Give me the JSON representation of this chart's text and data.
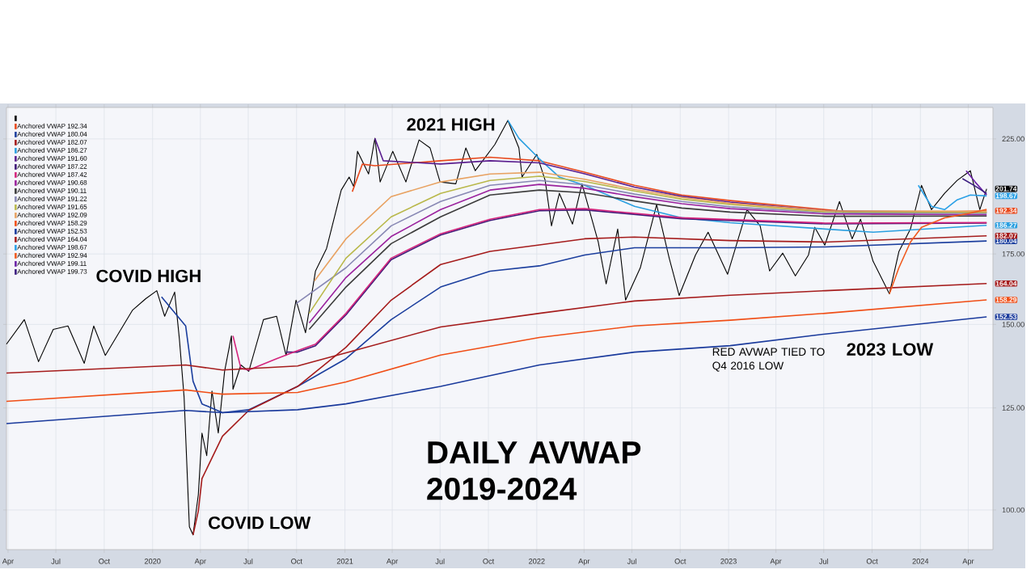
{
  "chart_data": {
    "type": "line",
    "title": "DAILY AVWAP 2019-2024",
    "annotations": [
      {
        "text": "COVID HIGH",
        "x": "2020-01-09",
        "y": 161.5
      },
      {
        "text": "COVID LOW",
        "x": "2020-03-18",
        "y": 94.7
      },
      {
        "text": "2021 HIGH",
        "x": "2021-11-07",
        "y": 234.3
      },
      "2023 LOW",
      "RED AVWAP TIED TO Q4 2016 LOW"
    ],
    "xlim": [
      "2019-03-29",
      "2024-05-18"
    ],
    "ylim": [
      91.7,
      241
    ],
    "log": "y",
    "grid": true,
    "legend": "top left",
    "marker": "none",
    "xticks": [
      {
        "value": "2019-04-01",
        "label": "Apr"
      },
      {
        "value": "2019-07-01",
        "label": "Jul"
      },
      {
        "value": "2019-10-01",
        "label": "Oct"
      },
      {
        "value": "2020-01-01",
        "label": "2020"
      },
      {
        "value": "2020-04-01",
        "label": "Apr"
      },
      {
        "value": "2020-07-01",
        "label": "Jul"
      },
      {
        "value": "2020-10-01",
        "label": "Oct"
      },
      {
        "value": "2021-01-01",
        "label": "2021"
      },
      {
        "value": "2021-04-01",
        "label": "Apr"
      },
      {
        "value": "2021-07-01",
        "label": "Jul"
      },
      {
        "value": "2021-10-01",
        "label": "Oct"
      },
      {
        "value": "2022-01-01",
        "label": "2022"
      },
      {
        "value": "2022-04-01",
        "label": "Apr"
      },
      {
        "value": "2022-07-01",
        "label": "Jul"
      },
      {
        "value": "2022-10-01",
        "label": "Oct"
      },
      {
        "value": "2023-01-01",
        "label": "2023"
      },
      {
        "value": "2023-04-01",
        "label": "Apr"
      },
      {
        "value": "2023-07-01",
        "label": "Jul"
      },
      {
        "value": "2023-10-01",
        "label": "Oct"
      },
      {
        "value": "2024-01-01",
        "label": "2024"
      },
      {
        "value": "2024-04-01",
        "label": "Apr"
      }
    ],
    "yticks": [
      {
        "value": 100,
        "label": "100.00"
      },
      {
        "value": 125,
        "label": "125.00"
      },
      {
        "value": 150,
        "label": "150.00"
      },
      {
        "value": 175,
        "label": "175.00"
      },
      {
        "value": 225,
        "label": "225.00"
      }
    ],
    "series": [
      {
        "color": "#000000",
        "x": [
          "2019-03-29",
          "2019-05-02",
          "2019-05-29",
          "2019-06-26",
          "2019-07-24",
          "2019-08-24",
          "2019-09-11",
          "2019-10-03",
          "2019-11-24",
          "2019-12-19",
          "2020-01-09",
          "2020-01-24",
          "2020-02-12",
          "2020-02-21",
          "2020-03-01",
          "2020-03-11",
          "2020-03-18",
          "2020-03-28",
          "2020-04-04",
          "2020-04-13",
          "2020-04-23",
          "2020-05-05",
          "2020-05-17",
          "2020-05-30",
          "2020-06-02",
          "2020-06-17",
          "2020-07-02",
          "2020-07-30",
          "2020-08-24",
          "2020-09-11",
          "2020-09-30",
          "2020-10-18",
          "2020-11-06",
          "2020-11-27",
          "2020-12-25",
          "2021-01-09",
          "2021-01-18",
          "2021-01-25",
          "2021-02-15",
          "2021-02-27",
          "2021-03-09",
          "2021-04-02",
          "2021-04-27",
          "2021-05-22",
          "2021-06-12",
          "2021-07-01",
          "2021-07-31",
          "2021-08-19",
          "2021-09-06",
          "2021-10-13",
          "2021-11-07",
          "2021-11-28",
          "2021-12-04",
          "2022-01-01",
          "2022-01-17",
          "2022-01-29",
          "2022-02-13",
          "2022-03-10",
          "2022-03-28",
          "2022-04-28",
          "2022-05-13",
          "2022-06-04",
          "2022-06-19",
          "2022-07-17",
          "2022-08-17",
          "2022-09-10",
          "2022-09-29",
          "2022-10-30",
          "2022-11-23",
          "2022-12-30",
          "2023-02-05",
          "2023-03-02",
          "2023-03-20",
          "2023-04-14",
          "2023-05-08",
          "2023-06-02",
          "2023-06-14",
          "2023-07-03",
          "2023-07-31",
          "2023-08-24",
          "2023-09-09",
          "2023-10-03",
          "2023-11-03",
          "2023-11-21",
          "2023-12-13",
          "2024-01-03",
          "2024-01-22",
          "2024-02-16",
          "2024-03-11",
          "2024-04-05",
          "2024-04-23",
          "2024-05-06"
        ],
        "values": [
          143.7,
          151.6,
          138.3,
          148.4,
          149.5,
          137.8,
          149.5,
          140.2,
          154.8,
          158.7,
          161.5,
          152.7,
          161.0,
          145.3,
          127.9,
          96.4,
          94.7,
          103.4,
          118.3,
          112.6,
          129.7,
          118.3,
          135.4,
          146.3,
          130.2,
          137.3,
          135.4,
          151.6,
          152.7,
          140.2,
          158.2,
          147.3,
          168.6,
          177.1,
          201.2,
          207.0,
          202.6,
          219.0,
          208.4,
          225.3,
          204.8,
          219.0,
          204.8,
          224.5,
          220.6,
          204.8,
          204.0,
          220.6,
          209.9,
          222.2,
          234.3,
          220.6,
          207.0,
          217.5,
          205.5,
          186.1,
          199.8,
          186.8,
          204.0,
          179.6,
          163.9,
          184.8,
          158.2,
          169.8,
          194.9,
          173.4,
          159.8,
          174.6,
          183.5,
          167.4,
          192.8,
          186.1,
          168.6,
          175.3,
          166.8,
          174.6,
          185.5,
          178.4,
          196.3,
          180.9,
          188.8,
          172.2,
          160.4,
          175.9,
          184.8,
          203.3,
          192.8,
          199.8,
          205.5,
          209.9,
          192.8,
          201.74
        ],
        "value_labels": [
          null,
          null,
          null,
          null,
          null,
          null,
          null,
          null,
          null,
          null,
          null,
          null,
          null,
          null,
          null,
          null,
          null,
          null,
          null,
          null,
          null,
          null,
          null,
          null,
          null,
          null,
          null,
          null,
          null,
          null,
          null,
          null,
          null,
          null,
          null,
          null,
          null,
          null,
          null,
          null,
          null,
          null,
          null,
          null,
          null,
          null,
          null,
          null,
          null,
          null,
          null,
          null,
          null,
          null,
          null,
          null,
          null,
          null,
          null,
          null,
          null,
          null,
          null,
          null,
          null,
          null,
          null,
          null,
          null,
          null,
          null,
          null,
          null,
          null,
          null,
          null,
          null,
          null,
          null,
          null,
          null,
          null,
          null,
          null,
          null,
          null,
          null,
          null,
          null,
          null,
          null,
          "201.74"
        ]
      },
      {
        "name": "Anchored VWAP 192.34",
        "color": "#e8491d",
        "x": [
          "2021-01-15",
          "2021-02-03",
          "2021-02-27",
          "2021-07-02",
          "2021-10-04",
          "2022-01-06",
          "2022-04-02",
          "2022-07-06",
          "2022-10-04",
          "2023-01-04",
          "2023-07-04",
          "2023-10-03",
          "2024-05-06"
        ],
        "values": [
          200.5,
          212.9,
          212.2,
          214.5,
          216.2,
          214.5,
          209.2,
          203.3,
          199.1,
          196.7,
          192.8,
          191.0,
          192.34
        ],
        "value_labels": [
          null,
          null,
          null,
          null,
          null,
          null,
          null,
          null,
          null,
          null,
          null,
          null,
          "192.34"
        ]
      },
      {
        "name": "Anchored VWAP 180.04",
        "color": "#1c3f9e",
        "x": [
          "2020-01-18",
          "2020-03-04",
          "2020-03-18",
          "2020-04-04",
          "2020-05-13",
          "2020-07-02",
          "2020-10-03",
          "2021-01-03",
          "2021-03-30",
          "2021-07-02",
          "2021-10-04",
          "2022-01-06",
          "2022-04-02",
          "2022-07-06",
          "2023-01-04",
          "2023-07-04",
          "2024-05-06"
        ],
        "values": [
          159.3,
          149.5,
          132.5,
          126.1,
          123.7,
          124.5,
          131.0,
          139.2,
          151.6,
          162.8,
          168.5,
          170.5,
          174.6,
          177.4,
          177.4,
          177.7,
          180.04
        ],
        "value_labels": [
          null,
          null,
          null,
          null,
          null,
          null,
          null,
          null,
          null,
          null,
          null,
          null,
          null,
          null,
          null,
          null,
          "180.04"
        ]
      },
      {
        "name": "Anchored VWAP 182.07",
        "color": "#a51c1c",
        "x": [
          "2020-03-18",
          "2020-03-28",
          "2020-04-04",
          "2020-05-13",
          "2020-07-02",
          "2020-10-03",
          "2021-01-03",
          "2021-03-30",
          "2021-07-02",
          "2021-10-04",
          "2022-01-06",
          "2022-04-02",
          "2022-07-06",
          "2023-01-04",
          "2023-07-04",
          "2024-05-06"
        ],
        "values": [
          94.7,
          99.8,
          107.1,
          117.5,
          124.3,
          131.0,
          142.7,
          158.2,
          171.0,
          176.0,
          178.5,
          180.9,
          181.6,
          180.2,
          179.6,
          182.07
        ],
        "value_labels": [
          null,
          null,
          null,
          null,
          null,
          null,
          null,
          null,
          null,
          null,
          null,
          null,
          null,
          null,
          null,
          "182.07"
        ]
      },
      {
        "name": "Anchored VWAP 186.27",
        "color": "#2a9fe0",
        "x": [
          "2021-11-07",
          "2021-11-28",
          "2022-01-06",
          "2022-02-13",
          "2022-04-02",
          "2022-07-06",
          "2022-10-04",
          "2023-01-04",
          "2023-07-04",
          "2023-10-03",
          "2024-05-06"
        ],
        "values": [
          234.3,
          225.3,
          215.4,
          207.0,
          203.3,
          194.2,
          189.4,
          187.4,
          184.8,
          183.5,
          186.27
        ],
        "value_labels": [
          null,
          null,
          null,
          null,
          null,
          null,
          null,
          null,
          null,
          null,
          "186.27"
        ]
      },
      {
        "name": "Anchored VWAP 191.60",
        "color": "#5b1f8f",
        "x": [
          "2021-02-27",
          "2021-03-15",
          "2021-07-02",
          "2021-10-04",
          "2022-01-06",
          "2022-04-02",
          "2022-07-06",
          "2022-10-04",
          "2023-01-04",
          "2023-07-04",
          "2024-05-06"
        ],
        "values": [
          225.3,
          214.5,
          213.0,
          214.5,
          213.5,
          208.5,
          202.5,
          198.5,
          196.0,
          192.3,
          191.6
        ]
      },
      {
        "name": "Anchored VWAP 187.22",
        "color": "#3f1a78",
        "x": [
          "2020-09-11",
          "2020-10-03",
          "2020-11-06",
          "2021-01-03",
          "2021-03-30",
          "2021-07-02",
          "2021-10-04",
          "2022-01-06",
          "2022-04-02",
          "2022-10-04",
          "2023-07-04",
          "2024-05-06"
        ],
        "values": [
          141.2,
          141.2,
          143.2,
          153.2,
          172.8,
          182.4,
          188.3,
          192.3,
          192.7,
          189.0,
          186.9,
          187.22
        ]
      },
      {
        "name": "Anchored VWAP 187.42",
        "color": "#d4247c",
        "x": [
          "2020-06-02",
          "2020-06-17",
          "2020-07-02",
          "2020-08-24",
          "2020-10-03",
          "2020-11-06",
          "2021-01-03",
          "2021-03-30",
          "2021-07-02",
          "2021-10-04",
          "2022-01-06",
          "2022-04-02",
          "2022-10-04",
          "2023-07-04",
          "2024-05-06"
        ],
        "values": [
          146.3,
          136.3,
          135.8,
          139.2,
          141.7,
          143.7,
          153.7,
          173.4,
          182.9,
          188.8,
          192.8,
          193.2,
          189.4,
          187.2,
          187.42
        ]
      },
      {
        "name": "Anchored VWAP 190.68",
        "color": "#9b239e",
        "x": [
          "2020-10-25",
          "2021-01-03",
          "2021-03-30",
          "2021-07-02",
          "2021-10-04",
          "2022-01-06",
          "2022-04-02",
          "2022-07-06",
          "2022-10-04",
          "2023-01-04",
          "2023-07-04",
          "2024-05-06"
        ],
        "values": [
          150.5,
          166.2,
          181.8,
          192.8,
          201.2,
          203.7,
          202.0,
          198.3,
          195.3,
          193.2,
          191.0,
          190.68
        ]
      },
      {
        "name": "Anchored VWAP 190.11",
        "color": "#3c3c3c",
        "x": [
          "2020-10-25",
          "2021-01-03",
          "2021-03-30",
          "2021-07-02",
          "2021-10-04",
          "2022-01-06",
          "2022-04-02",
          "2022-07-06",
          "2022-10-04",
          "2023-01-04",
          "2023-07-04",
          "2024-05-06"
        ],
        "values": [
          148.4,
          162.8,
          179.0,
          189.8,
          199.1,
          201.2,
          200.0,
          196.5,
          193.5,
          191.8,
          190.0,
          190.11
        ]
      },
      {
        "name": "Anchored VWAP 191.22",
        "color": "#8888b4",
        "x": [
          "2020-09-30",
          "2021-01-03",
          "2021-03-30",
          "2021-07-02",
          "2021-10-04",
          "2022-01-06",
          "2022-04-02",
          "2022-07-06",
          "2022-10-04",
          "2023-01-04",
          "2023-07-04",
          "2024-05-06"
        ],
        "values": [
          157.0,
          169.8,
          186.1,
          196.3,
          203.3,
          205.5,
          203.5,
          199.5,
          196.3,
          194.0,
          191.5,
          191.22
        ]
      },
      {
        "name": "Anchored VWAP 191.65",
        "color": "#b9b84a",
        "x": [
          "2020-10-25",
          "2021-01-03",
          "2021-03-30",
          "2021-07-02",
          "2021-10-04",
          "2022-01-06",
          "2022-04-02",
          "2022-07-06",
          "2022-10-04",
          "2023-01-04",
          "2023-07-04",
          "2024-05-06"
        ],
        "values": [
          153.7,
          173.4,
          189.8,
          199.8,
          205.5,
          207.4,
          205.0,
          200.8,
          197.3,
          195.0,
          191.9,
          191.65
        ]
      },
      {
        "name": "Anchored VWAP 192.09",
        "color": "#e8a262",
        "x": [
          "2020-11-04",
          "2021-01-03",
          "2021-03-30",
          "2021-07-02",
          "2021-10-04",
          "2022-01-06",
          "2022-04-02",
          "2022-07-06",
          "2022-10-04",
          "2023-01-04",
          "2023-07-04",
          "2024-05-06"
        ],
        "values": [
          165.0,
          180.9,
          198.4,
          204.8,
          208.4,
          209.2,
          206.0,
          201.5,
          198.0,
          195.5,
          192.3,
          192.09
        ]
      },
      {
        "name": "Anchored VWAP 158.29",
        "color": "#f04e16",
        "x": [
          "2019-03-29",
          "2020-03-04",
          "2020-05-13",
          "2020-10-03",
          "2021-01-03",
          "2021-07-02",
          "2022-01-06",
          "2022-07-06",
          "2023-01-04",
          "2023-07-04",
          "2024-05-06"
        ],
        "values": [
          126.8,
          130.0,
          128.8,
          129.3,
          132.3,
          140.3,
          145.8,
          149.5,
          151.4,
          153.7,
          158.29
        ],
        "value_labels": [
          null,
          null,
          null,
          null,
          null,
          null,
          null,
          null,
          null,
          null,
          "158.29"
        ]
      },
      {
        "name": "Anchored VWAP 152.53",
        "color": "#1a3a9c",
        "x": [
          "2019-03-29",
          "2020-03-04",
          "2020-05-13",
          "2020-10-03",
          "2021-01-03",
          "2021-07-02",
          "2022-01-06",
          "2022-07-06",
          "2023-01-04",
          "2023-07-04",
          "2024-05-06"
        ],
        "values": [
          120.8,
          124.3,
          123.7,
          124.5,
          126.1,
          131.0,
          137.3,
          141.2,
          143.2,
          146.9,
          152.53
        ],
        "value_labels": [
          null,
          null,
          null,
          null,
          null,
          null,
          null,
          null,
          null,
          null,
          "152.53"
        ]
      },
      {
        "name": "Anchored VWAP 164.04",
        "color": "#a51c1c",
        "x": [
          "2019-03-29",
          "2020-03-04",
          "2020-05-13",
          "2020-10-03",
          "2021-01-03",
          "2021-07-02",
          "2022-01-06",
          "2022-07-06",
          "2023-01-04",
          "2023-07-04",
          "2024-05-06"
        ],
        "values": [
          134.9,
          137.3,
          135.8,
          137.0,
          141.0,
          149.2,
          153.7,
          157.9,
          159.9,
          161.5,
          164.04
        ],
        "value_labels": [
          null,
          null,
          null,
          null,
          null,
          null,
          null,
          null,
          null,
          null,
          "164.04"
        ]
      },
      {
        "name": "Anchored VWAP 198.67",
        "color": "#2aa0e6",
        "x": [
          "2023-12-28",
          "2024-01-22",
          "2024-02-16",
          "2024-03-11",
          "2024-04-05",
          "2024-05-06"
        ],
        "values": [
          203.3,
          194.2,
          192.8,
          197.0,
          199.1,
          198.67
        ],
        "value_labels": [
          null,
          null,
          null,
          null,
          null,
          "198.67"
        ]
      },
      {
        "name": "Anchored VWAP 192.94",
        "color": "#f05a1e",
        "x": [
          "2023-11-03",
          "2023-11-21",
          "2023-12-13",
          "2024-01-03",
          "2024-02-16",
          "2024-03-28",
          "2024-05-06"
        ],
        "values": [
          160.4,
          169.8,
          179.6,
          185.5,
          189.4,
          191.0,
          192.94
        ]
      },
      {
        "name": "Anchored VWAP 199.11",
        "color": "#6a22a6",
        "x": [
          "2024-03-28",
          "2024-04-14",
          "2024-05-06"
        ],
        "values": [
          209.9,
          204.8,
          199.11
        ]
      },
      {
        "name": "Anchored VWAP 199.73",
        "color": "#3b1d80",
        "x": [
          "2024-03-21",
          "2024-04-14",
          "2024-05-06"
        ],
        "values": [
          206.3,
          203.0,
          199.73
        ]
      }
    ]
  }
}
